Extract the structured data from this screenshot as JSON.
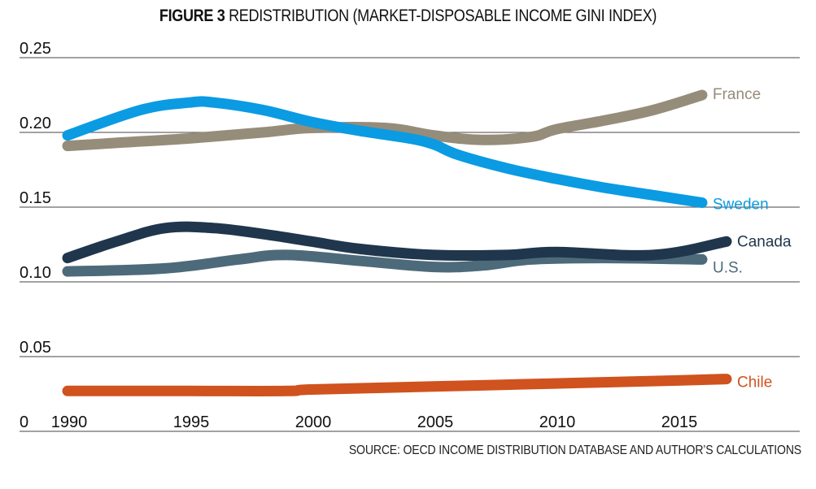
{
  "chart_data": {
    "type": "line",
    "title_bold": "FIGURE 3",
    "title_rest": "REDISTRIBUTION (MARKET-DISPOSABLE INCOME GINI INDEX)",
    "source": "SOURCE: OECD INCOME DISTRIBUTION DATABASE AND AUTHOR’S CALCULATIONS",
    "xlabel": "",
    "ylabel": "",
    "xlim": [
      1990,
      2021.5
    ],
    "ylim": [
      0,
      0.25
    ],
    "grid": true,
    "yticks": [
      {
        "value": 0,
        "label": "0"
      },
      {
        "value": 0.05,
        "label": "0.05"
      },
      {
        "value": 0.1,
        "label": "0.10"
      },
      {
        "value": 0.15,
        "label": "0.15"
      },
      {
        "value": 0.2,
        "label": "0.20"
      },
      {
        "value": 0.25,
        "label": "0.25"
      }
    ],
    "xticks": [
      {
        "value": 1990,
        "label": "1990"
      },
      {
        "value": 1995,
        "label": "1995"
      },
      {
        "value": 2000,
        "label": "2000"
      },
      {
        "value": 2005,
        "label": "2005"
      },
      {
        "value": 2010,
        "label": "2010"
      },
      {
        "value": 2015,
        "label": "2015"
      }
    ],
    "legend": "inline-right",
    "series": [
      {
        "name": "France",
        "color": "#968c7a",
        "x": [
          1990,
          1992,
          1995,
          1998,
          2000,
          2003,
          2005,
          2007,
          2009,
          2010,
          2012,
          2014,
          2016
        ],
        "values": [
          0.191,
          0.193,
          0.196,
          0.2,
          0.203,
          0.203,
          0.198,
          0.195,
          0.197,
          0.202,
          0.208,
          0.215,
          0.225
        ]
      },
      {
        "name": "Sweden",
        "color": "#0a9be3",
        "x": [
          1990,
          1993,
          1995,
          1996,
          1998,
          2000,
          2002,
          2004,
          2005,
          2006,
          2008,
          2010,
          2012,
          2014,
          2016
        ],
        "values": [
          0.198,
          0.215,
          0.22,
          0.22,
          0.215,
          0.207,
          0.201,
          0.196,
          0.192,
          0.185,
          0.176,
          0.169,
          0.163,
          0.158,
          0.153
        ]
      },
      {
        "name": "Canada",
        "color": "#1f364d",
        "x": [
          1990,
          1992,
          1994,
          1996,
          1998,
          2000,
          2002,
          2005,
          2008,
          2010,
          2014,
          2017
        ],
        "values": [
          0.116,
          0.127,
          0.136,
          0.136,
          0.132,
          0.127,
          0.122,
          0.118,
          0.118,
          0.12,
          0.118,
          0.127
        ]
      },
      {
        "name": "U.S.",
        "color": "#4d6a7a",
        "x": [
          1990,
          1994,
          1997,
          1999,
          2002,
          2005,
          2007,
          2009,
          2012,
          2016
        ],
        "values": [
          0.107,
          0.109,
          0.115,
          0.118,
          0.114,
          0.11,
          0.111,
          0.115,
          0.116,
          0.115
        ]
      },
      {
        "name": "Chile",
        "color": "#d0521e",
        "x": [
          1990,
          1995,
          1999,
          2000,
          2005,
          2010,
          2015,
          2017
        ],
        "values": [
          0.027,
          0.027,
          0.027,
          0.028,
          0.03,
          0.032,
          0.034,
          0.035
        ]
      }
    ]
  }
}
